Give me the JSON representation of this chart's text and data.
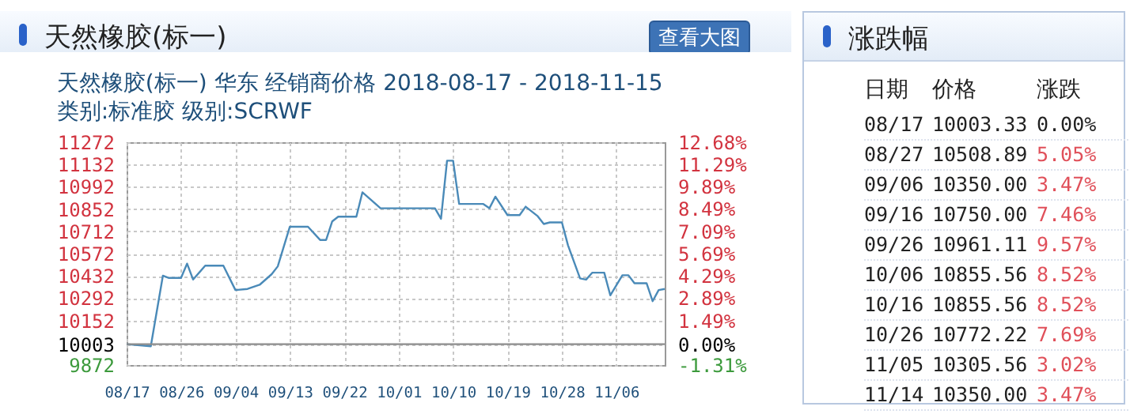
{
  "chart_data": [
    {
      "type": "line",
      "title": "天然橡胶(标一) 华东 经销商价格 2018-08-17 - 2018-11-15",
      "subtitle": "类别:标准胶 级别:SCRWF",
      "annotations": [
        "天然橡胶(标一)",
        "查看大图"
      ],
      "x": [
        "2018-08-17",
        "2018-08-21",
        "2018-08-23",
        "2018-08-24",
        "2018-08-26",
        "2018-08-27",
        "2018-08-28",
        "2018-08-30",
        "2018-09-02",
        "2018-09-04",
        "2018-09-06",
        "2018-09-08",
        "2018-09-10",
        "2018-09-11",
        "2018-09-13",
        "2018-09-16",
        "2018-09-18",
        "2018-09-19",
        "2018-09-20",
        "2018-09-21",
        "2018-09-24",
        "2018-09-25",
        "2018-09-26",
        "2018-09-28",
        "2018-10-07",
        "2018-10-08",
        "2018-10-09",
        "2018-10-10",
        "2018-10-11",
        "2018-10-15",
        "2018-10-16",
        "2018-10-17",
        "2018-10-19",
        "2018-10-21",
        "2018-10-22",
        "2018-10-24",
        "2018-10-25",
        "2018-10-26",
        "2018-10-28",
        "2018-10-29",
        "2018-10-31",
        "2018-11-01",
        "2018-11-02",
        "2018-11-04",
        "2018-11-05",
        "2018-11-07",
        "2018-11-08",
        "2018-11-09",
        "2018-11-11",
        "2018-11-12",
        "2018-11-13",
        "2018-11-14"
      ],
      "series": [
        {
          "color": "#4a8ab8",
          "values": [
            10003,
            9990,
            10433,
            10419,
            10419,
            10509,
            10409,
            10496,
            10496,
            10343,
            10350,
            10376,
            10443,
            10492,
            10741,
            10741,
            10658,
            10658,
            10774,
            10804,
            10804,
            10957,
            10924,
            10857,
            10857,
            10791,
            11156,
            11156,
            10884,
            10884,
            10857,
            10930,
            10814,
            10814,
            10867,
            10807,
            10758,
            10768,
            10768,
            10625,
            10416,
            10409,
            10452,
            10452,
            10310,
            10436,
            10436,
            10386,
            10386,
            10273,
            10343,
            10350
          ]
        }
      ],
      "xlim": [
        "2018-08-17",
        "2018-11-14"
      ],
      "xticks": [
        {
          "value": "2018-08-17",
          "label": "08/17"
        },
        {
          "value": "2018-08-26",
          "label": "08/26"
        },
        {
          "value": "2018-09-04",
          "label": "09/04"
        },
        {
          "value": "2018-09-13",
          "label": "09/13"
        },
        {
          "value": "2018-09-22",
          "label": "09/22"
        },
        {
          "value": "2018-10-01",
          "label": "10/01"
        },
        {
          "value": "2018-10-10",
          "label": "10/10"
        },
        {
          "value": "2018-10-19",
          "label": "10/19"
        },
        {
          "value": "2018-10-28",
          "label": "10/28"
        },
        {
          "value": "2018-11-06",
          "label": "11/06"
        }
      ],
      "ylim": [
        9872,
        11272
      ],
      "yticks": [
        9872,
        10003,
        10152,
        10292,
        10432,
        10572,
        10712,
        10852,
        10992,
        11132,
        11272
      ],
      "y2lim": [
        -1.31,
        12.68
      ],
      "y2ticks": [
        {
          "value": -1.31,
          "label": "-1.31%"
        },
        {
          "value": 0,
          "label": "0.00%"
        },
        {
          "value": 1.49,
          "label": "1.49%"
        },
        {
          "value": 2.89,
          "label": "2.89%"
        },
        {
          "value": 4.29,
          "label": "4.29%"
        },
        {
          "value": 5.69,
          "label": "5.69%"
        },
        {
          "value": 7.09,
          "label": "7.09%"
        },
        {
          "value": 8.49,
          "label": "8.49%"
        },
        {
          "value": 9.89,
          "label": "9.89%"
        },
        {
          "value": 11.29,
          "label": "11.29%"
        },
        {
          "value": 12.68,
          "label": "12.68%"
        }
      ],
      "ref_lines": [
        {
          "axis": "y",
          "value": 10003,
          "color": "#8c8c8c"
        }
      ],
      "grid": true,
      "marker": "none"
    },
    {
      "type": "other",
      "title": "涨跌幅",
      "annotations": [
        "日期",
        "价格",
        "涨跌",
        "08/17",
        "10003.33",
        "0.00%",
        "08/27",
        "10508.89",
        "5.05%",
        "09/06",
        "10350.00",
        "3.47%",
        "09/16",
        "10750.00",
        "7.46%",
        "09/26",
        "10961.11",
        "9.57%",
        "10/06",
        "10855.56",
        "8.52%",
        "10/16",
        "10855.56",
        "8.52%",
        "10/26",
        "10772.22",
        "7.69%",
        "11/05",
        "10305.56",
        "3.02%",
        "11/14",
        "10350.00",
        "3.47%"
      ]
    }
  ]
}
